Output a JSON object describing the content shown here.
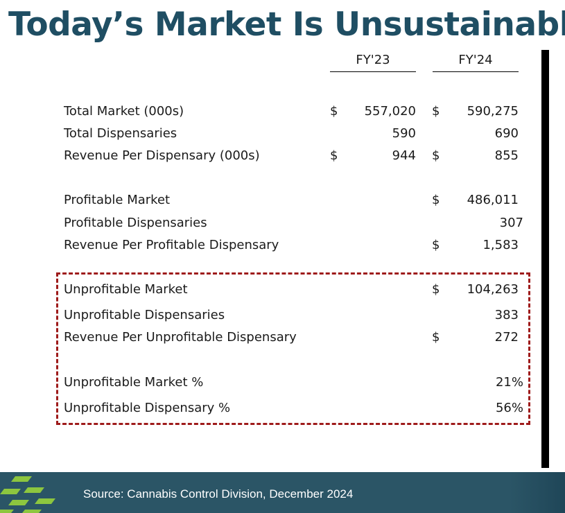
{
  "title": "Today’s Market Is Unsustainable",
  "columns": {
    "fy23": "FY'23",
    "fy24": "FY'24"
  },
  "rows": [
    {
      "label": "Total Market (000s)",
      "fy23_dollar": "$",
      "fy23": "557,020",
      "fy24_dollar": "$",
      "fy24": "590,275"
    },
    {
      "label": "Total Dispensaries",
      "fy23_dollar": "",
      "fy23": "590",
      "fy24_dollar": "",
      "fy24": "690"
    },
    {
      "label": "Revenue Per Dispensary (000s)",
      "fy23_dollar": "$",
      "fy23": "944",
      "fy24_dollar": "$",
      "fy24": "855"
    },
    {
      "label": "Profitable Market",
      "fy24_dollar": "$",
      "fy24": "486,011"
    },
    {
      "label": "Profitable Dispensaries",
      "fy24_dollar": "",
      "fy24": "307"
    },
    {
      "label": "Revenue Per Profitable Dispensary",
      "fy24_dollar": "$",
      "fy24": "1,583"
    },
    {
      "label": "Unprofitable Market",
      "fy24_dollar": "$",
      "fy24": "104,263"
    },
    {
      "label": "Unprofitable Dispensaries",
      "fy24_dollar": "",
      "fy24": "383"
    },
    {
      "label": "Revenue Per Unprofitable Dispensary",
      "fy24_dollar": "$",
      "fy24": "272"
    },
    {
      "label": "Unprofitable Market %",
      "fy24": "21%"
    },
    {
      "label": "Unprofitable Dispensary %",
      "fy24": "56%"
    }
  ],
  "footer": {
    "source": "Source: Cannabis Control Division, December 2024"
  },
  "colors": {
    "title": "#1f4e63",
    "footer_bg": "#2b5566",
    "highlight_border": "#9e1b1b",
    "logo_green": "#8dc63f"
  }
}
